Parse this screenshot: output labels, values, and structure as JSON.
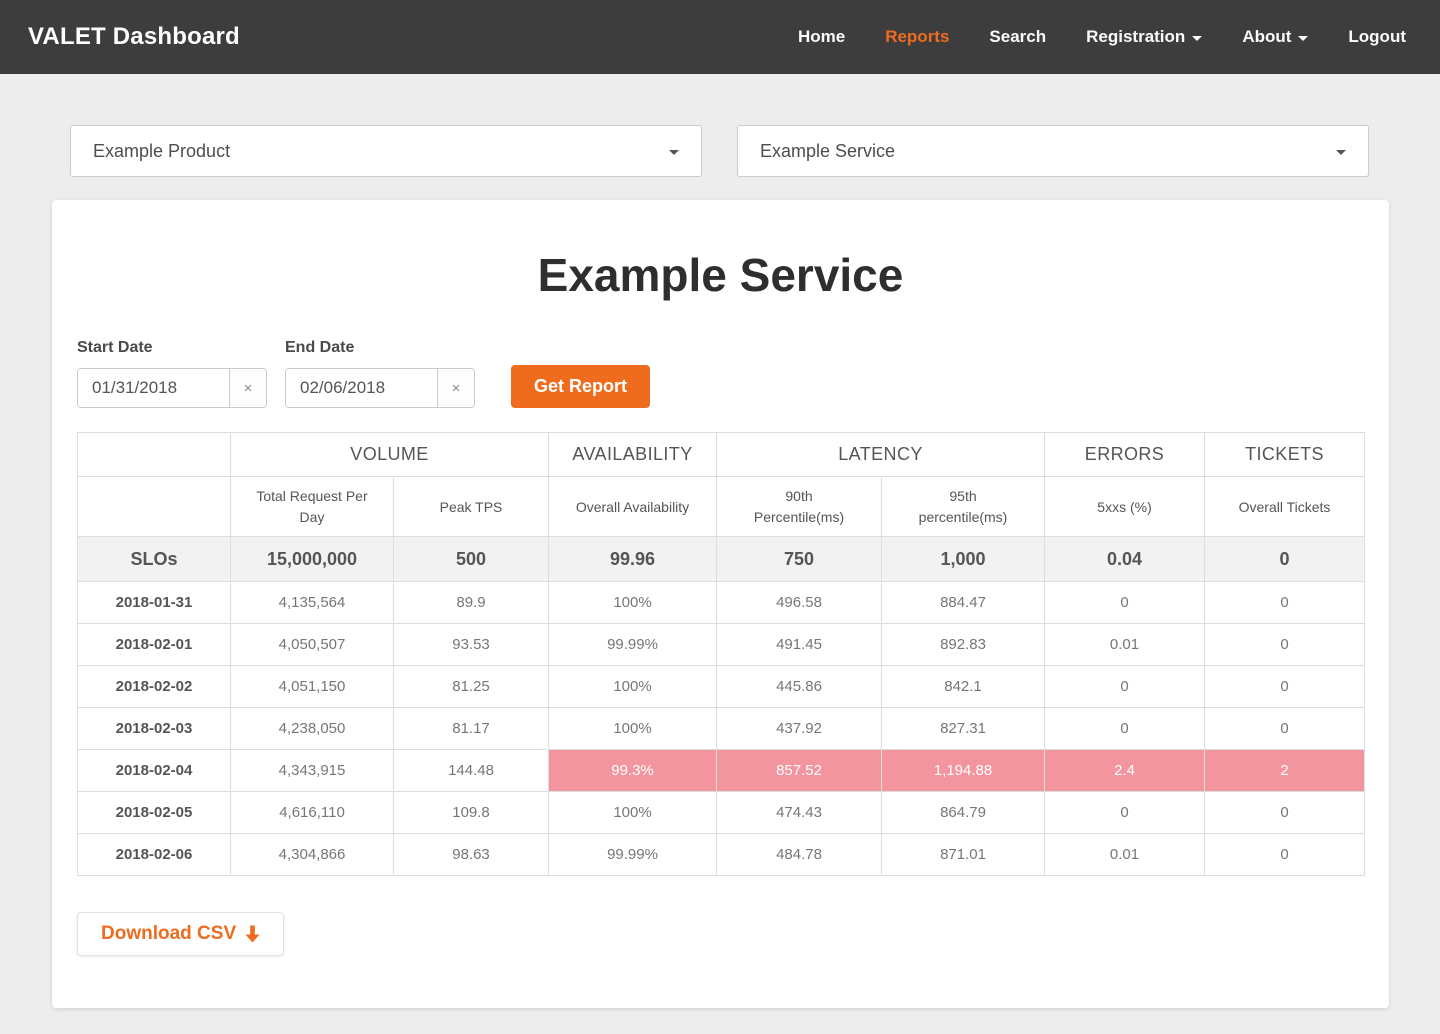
{
  "colors": {
    "accent": "#EF6C1F",
    "alert_bg": "#F2959E",
    "navbar_bg": "#3D3D3D"
  },
  "navbar": {
    "brand": "VALET Dashboard",
    "items": [
      {
        "label": "Home",
        "active": false,
        "caret": false
      },
      {
        "label": "Reports",
        "active": true,
        "caret": false
      },
      {
        "label": "Search",
        "active": false,
        "caret": false
      },
      {
        "label": "Registration",
        "active": false,
        "caret": true
      },
      {
        "label": "About",
        "active": false,
        "caret": true
      },
      {
        "label": "Logout",
        "active": false,
        "caret": false
      }
    ]
  },
  "filters": {
    "product_dropdown": {
      "value": "Example Product"
    },
    "service_dropdown": {
      "value": "Example Service"
    }
  },
  "report": {
    "title": "Example Service",
    "start_date": {
      "label": "Start Date",
      "value": "01/31/2018",
      "clear": "×"
    },
    "end_date": {
      "label": "End Date",
      "value": "02/06/2018",
      "clear": "×"
    },
    "get_report_label": "Get Report",
    "download_csv_label": "Download CSV"
  },
  "table": {
    "group_headers": {
      "volume": "VOLUME",
      "availability": "AVAILABILITY",
      "latency": "LATENCY",
      "errors": "ERRORS",
      "tickets": "TICKETS"
    },
    "sub_headers": {
      "total_request": "Total Request Per Day",
      "peak_tps": "Peak TPS",
      "overall_availability": "Overall Availability",
      "p90": "90th Percentile(ms)",
      "p95": "95th percentile(ms)",
      "errors": "5xxs (%)",
      "overall_tickets": "Overall Tickets"
    },
    "slo_row": {
      "label": "SLOs",
      "total_requests": "15,000,000",
      "peak_tps": "500",
      "availability": "99.96",
      "p90": "750",
      "p95": "1,000",
      "errors": "0.04",
      "tickets": "0"
    },
    "rows": [
      {
        "date": "2018-01-31",
        "total_requests": "4,135,564",
        "peak_tps": "89.9",
        "availability": "100%",
        "p90": "496.58",
        "p95": "884.47",
        "errors": "0",
        "tickets": "0",
        "alert": false
      },
      {
        "date": "2018-02-01",
        "total_requests": "4,050,507",
        "peak_tps": "93.53",
        "availability": "99.99%",
        "p90": "491.45",
        "p95": "892.83",
        "errors": "0.01",
        "tickets": "0",
        "alert": false
      },
      {
        "date": "2018-02-02",
        "total_requests": "4,051,150",
        "peak_tps": "81.25",
        "availability": "100%",
        "p90": "445.86",
        "p95": "842.1",
        "errors": "0",
        "tickets": "0",
        "alert": false
      },
      {
        "date": "2018-02-03",
        "total_requests": "4,238,050",
        "peak_tps": "81.17",
        "availability": "100%",
        "p90": "437.92",
        "p95": "827.31",
        "errors": "0",
        "tickets": "0",
        "alert": false
      },
      {
        "date": "2018-02-04",
        "total_requests": "4,343,915",
        "peak_tps": "144.48",
        "availability": "99.3%",
        "p90": "857.52",
        "p95": "1,194.88",
        "errors": "2.4",
        "tickets": "2",
        "alert": true
      },
      {
        "date": "2018-02-05",
        "total_requests": "4,616,110",
        "peak_tps": "109.8",
        "availability": "100%",
        "p90": "474.43",
        "p95": "864.79",
        "errors": "0",
        "tickets": "0",
        "alert": false
      },
      {
        "date": "2018-02-06",
        "total_requests": "4,304,866",
        "peak_tps": "98.63",
        "availability": "99.99%",
        "p90": "484.78",
        "p95": "871.01",
        "errors": "0.01",
        "tickets": "0",
        "alert": false
      }
    ]
  }
}
